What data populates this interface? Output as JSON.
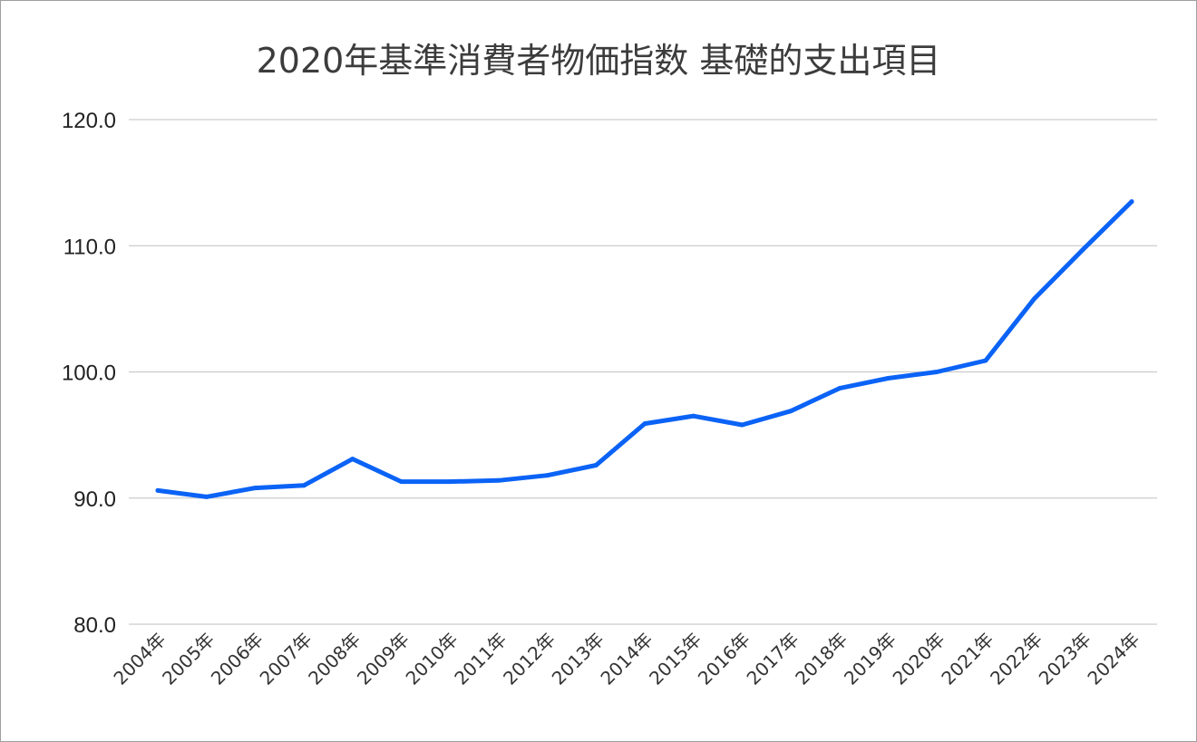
{
  "chart_data": {
    "type": "line",
    "title": "2020年基準消費者物価指数 基礎的支出項目",
    "xlabel": "",
    "ylabel": "",
    "categories": [
      "2004年",
      "2005年",
      "2006年",
      "2007年",
      "2008年",
      "2009年",
      "2010年",
      "2011年",
      "2012年",
      "2013年",
      "2014年",
      "2015年",
      "2016年",
      "2017年",
      "2018年",
      "2019年",
      "2020年",
      "2021年",
      "2022年",
      "2023年",
      "2024年"
    ],
    "series": [
      {
        "name": "",
        "color": "#0b63f6",
        "values": [
          90.6,
          90.1,
          90.8,
          91.0,
          93.1,
          91.3,
          91.3,
          91.4,
          91.8,
          92.6,
          95.9,
          96.5,
          95.8,
          96.9,
          98.7,
          99.5,
          100.0,
          100.9,
          105.8,
          109.7,
          113.5
        ]
      }
    ],
    "ylim": [
      80,
      120
    ],
    "yticks": [
      "80.0",
      "90.0",
      "100.0",
      "110.0",
      "120.0"
    ],
    "grid": true,
    "legend": "none"
  }
}
